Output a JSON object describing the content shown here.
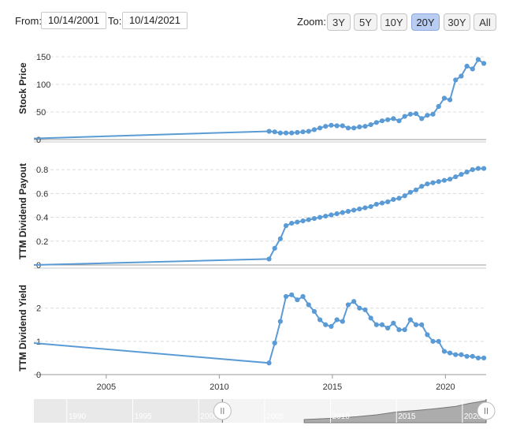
{
  "range": {
    "from_label": "From:",
    "from_value": "10/14/2001",
    "to_label": "To:",
    "to_value": "10/14/2021"
  },
  "zoom": {
    "label": "Zoom:",
    "buttons": [
      {
        "label": "3Y",
        "active": false
      },
      {
        "label": "5Y",
        "active": false
      },
      {
        "label": "10Y",
        "active": false
      },
      {
        "label": "20Y",
        "active": true
      },
      {
        "label": "30Y",
        "active": false
      },
      {
        "label": "All",
        "active": false
      }
    ]
  },
  "colors": {
    "series": "#5b9bd5",
    "navigator_fill": "#9a9a9a",
    "zoom_active": "#b9cdf2"
  },
  "chart_data": [
    {
      "type": "line",
      "title": "",
      "ylabel": "Stock Price",
      "ylim": [
        0,
        160
      ],
      "yticks": [
        0,
        50,
        100,
        150
      ],
      "xlim": [
        2001.8,
        2021.8
      ],
      "x": [
        2001.8,
        2012.2,
        2012.45,
        2012.7,
        2012.95,
        2013.2,
        2013.45,
        2013.7,
        2013.95,
        2014.2,
        2014.45,
        2014.7,
        2014.95,
        2015.2,
        2015.45,
        2015.7,
        2015.95,
        2016.2,
        2016.45,
        2016.7,
        2016.95,
        2017.2,
        2017.45,
        2017.7,
        2017.95,
        2018.2,
        2018.45,
        2018.7,
        2018.95,
        2019.2,
        2019.45,
        2019.7,
        2019.95,
        2020.2,
        2020.45,
        2020.7,
        2020.95,
        2021.2,
        2021.45,
        2021.7
      ],
      "values": [
        2,
        15,
        14,
        12,
        12,
        12,
        13,
        14,
        15,
        18,
        21,
        24,
        26,
        25,
        25,
        21,
        21,
        23,
        24,
        27,
        31,
        34,
        36,
        38,
        34,
        42,
        46,
        47,
        38,
        44,
        46,
        60,
        75,
        72,
        108,
        115,
        133,
        128,
        145,
        138
      ]
    },
    {
      "type": "line",
      "title": "",
      "ylabel": "TTM Dividend Payout",
      "ylim": [
        0,
        0.9
      ],
      "yticks": [
        0.0,
        0.2,
        0.4,
        0.6,
        0.8
      ],
      "xlim": [
        2001.8,
        2021.8
      ],
      "x": [
        2001.8,
        2012.2,
        2012.45,
        2012.7,
        2012.95,
        2013.2,
        2013.45,
        2013.7,
        2013.95,
        2014.2,
        2014.45,
        2014.7,
        2014.95,
        2015.2,
        2015.45,
        2015.7,
        2015.95,
        2016.2,
        2016.45,
        2016.7,
        2016.95,
        2017.2,
        2017.45,
        2017.7,
        2017.95,
        2018.2,
        2018.45,
        2018.7,
        2018.95,
        2019.2,
        2019.45,
        2019.7,
        2019.95,
        2020.2,
        2020.45,
        2020.7,
        2020.95,
        2021.2,
        2021.45,
        2021.7
      ],
      "values": [
        0.0,
        0.05,
        0.14,
        0.22,
        0.33,
        0.35,
        0.36,
        0.37,
        0.38,
        0.39,
        0.4,
        0.41,
        0.42,
        0.43,
        0.44,
        0.45,
        0.46,
        0.47,
        0.48,
        0.49,
        0.51,
        0.52,
        0.53,
        0.55,
        0.56,
        0.58,
        0.61,
        0.63,
        0.66,
        0.68,
        0.69,
        0.7,
        0.71,
        0.72,
        0.74,
        0.76,
        0.78,
        0.8,
        0.81,
        0.81
      ]
    },
    {
      "type": "line",
      "title": "",
      "ylabel": "TTM Dividend Yield",
      "ylim": [
        0,
        2.8
      ],
      "yticks": [
        0,
        1,
        2
      ],
      "xlim": [
        2001.8,
        2021.8
      ],
      "xticks": [
        2005,
        2010,
        2015,
        2020
      ],
      "x": [
        2001.8,
        2012.2,
        2012.45,
        2012.7,
        2012.95,
        2013.2,
        2013.45,
        2013.7,
        2013.95,
        2014.2,
        2014.45,
        2014.7,
        2014.95,
        2015.2,
        2015.45,
        2015.7,
        2015.95,
        2016.2,
        2016.45,
        2016.7,
        2016.95,
        2017.2,
        2017.45,
        2017.7,
        2017.95,
        2018.2,
        2018.45,
        2018.7,
        2018.95,
        2019.2,
        2019.45,
        2019.7,
        2019.95,
        2020.2,
        2020.45,
        2020.7,
        2020.95,
        2021.2,
        2021.45,
        2021.7
      ],
      "values": [
        0.95,
        0.35,
        0.95,
        1.6,
        2.35,
        2.4,
        2.25,
        2.35,
        2.1,
        1.9,
        1.65,
        1.5,
        1.45,
        1.65,
        1.6,
        2.1,
        2.2,
        2.0,
        1.95,
        1.7,
        1.5,
        1.5,
        1.4,
        1.55,
        1.35,
        1.35,
        1.65,
        1.5,
        1.5,
        1.2,
        1.0,
        1.0,
        0.7,
        0.65,
        0.6,
        0.6,
        0.55,
        0.55,
        0.5,
        0.5
      ]
    }
  ],
  "navigator": {
    "tick_labels": [
      "1990",
      "1995",
      "2000",
      "2005",
      "2010",
      "2015",
      "2020"
    ],
    "tick_years": [
      1990,
      1995,
      2000,
      2005,
      2010,
      2015,
      2020
    ],
    "xlim": [
      1987.5,
      2021.8
    ],
    "selected_from_year": 2001.8,
    "selected_to_year": 2021.8
  }
}
